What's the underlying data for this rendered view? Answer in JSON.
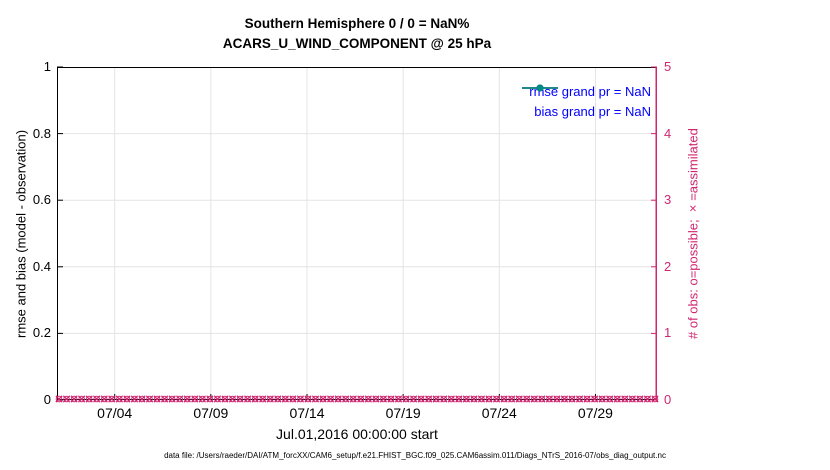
{
  "chart": {
    "title_line1": "Southern Hemisphere 0 / 0 = NaN%",
    "title_line2": "ACARS_U_WIND_COMPONENT @ 25 hPa",
    "ylabel_left": "rmse and bias (model - observation)",
    "ylabel_right": "# of obs: o=possible; ×=assimilated",
    "xlabel": "Jul.01,2016 00:00:00 start",
    "datafile_note": "data file: /Users/raeder/DAI/ATM_forcXX/CAM6_setup/f.e21.FHIST_BGC.f09_025.CAM6assim.011/Diags_NTrS_2016-07/obs_diag_output.nc"
  },
  "legend": {
    "text_color": "#0000ff",
    "items": [
      {
        "series": "rmse",
        "label": "rmse grand pr = NaN",
        "color": "#000000"
      },
      {
        "series": "bias",
        "label": "bias grand pr = NaN",
        "color": "#008b8b"
      }
    ]
  },
  "colors": {
    "axis_left": "#000000",
    "axis_right": "#d02670",
    "obs_marker": "#d02670",
    "grid": "#e4e4e4",
    "legend_text": "#0000ff",
    "rmse": "#000000",
    "bias": "#008b8b"
  },
  "chart_data": {
    "type": "line",
    "title": "Southern Hemisphere 0 / 0 = NaN%",
    "subtitle": "ACARS_U_WIND_COMPONENT @ 25 hPa",
    "xlabel": "Jul.01,2016 00:00:00 start",
    "ylabel_left": "rmse and bias (model - observation)",
    "ylabel_right": "# of obs: o=possible; ×=assimilated",
    "grid": true,
    "legend_position": "top-right-inside",
    "xlim_days": [
      1,
      32.2
    ],
    "ylim_left": [
      0,
      1
    ],
    "ylim_right": [
      0,
      5
    ],
    "x_ticks": [
      {
        "label": "07/04",
        "day": 4
      },
      {
        "label": "07/09",
        "day": 9
      },
      {
        "label": "07/14",
        "day": 14
      },
      {
        "label": "07/19",
        "day": 19
      },
      {
        "label": "07/24",
        "day": 24
      },
      {
        "label": "07/29",
        "day": 29
      }
    ],
    "y_ticks_left": [
      {
        "label": "0",
        "value": 0
      },
      {
        "label": "0.2",
        "value": 0.2
      },
      {
        "label": "0.4",
        "value": 0.4
      },
      {
        "label": "0.6",
        "value": 0.6
      },
      {
        "label": "0.8",
        "value": 0.8
      },
      {
        "label": "1",
        "value": 1
      }
    ],
    "y_ticks_right": [
      {
        "label": "0",
        "value": 0
      },
      {
        "label": "1",
        "value": 1
      },
      {
        "label": "2",
        "value": 2
      },
      {
        "label": "3",
        "value": 3
      },
      {
        "label": "4",
        "value": 4
      },
      {
        "label": "5",
        "value": 5
      }
    ],
    "series": [
      {
        "name": "rmse grand pr = NaN",
        "color": "#000000",
        "values": null,
        "note": "all values NaN - nothing plotted"
      },
      {
        "name": "bias grand pr = NaN",
        "color": "#008b8b",
        "values": null,
        "note": "all values NaN - nothing plotted"
      }
    ],
    "obs_counts": {
      "possible_per_bin": 0,
      "assimilated_per_bin": 0,
      "n_bins": 80,
      "value_axis": "right",
      "constant_value": 0,
      "marker_color": "#d02670",
      "note": "row of o and × markers all at zero along the bottom axis"
    }
  }
}
